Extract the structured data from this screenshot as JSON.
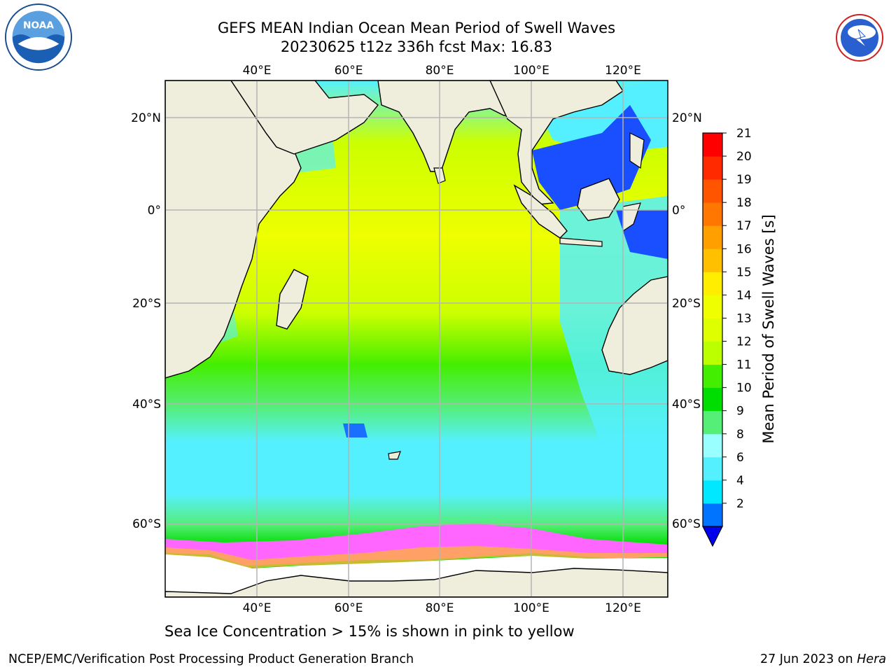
{
  "header": {
    "title_line1": "GEFS MEAN Indian Ocean Mean Period of Swell Waves",
    "title_line2": "20230625 t12z 336h fcst   Max: 16.83"
  },
  "map": {
    "lon_ticks": [
      "40°E",
      "60°E",
      "80°E",
      "100°E",
      "120°E"
    ],
    "lat_ticks_left": [
      "20°N",
      "0°",
      "20°S",
      "40°S",
      "60°S"
    ],
    "lat_ticks_right": [
      "20°N",
      "0°",
      "20°S",
      "40°S",
      "60°S"
    ],
    "land_color": "#efeddc",
    "sea_ice_color": "#ff66ff"
  },
  "colorbar": {
    "label": "Mean Period of Swell Waves [s]",
    "ticks": [
      "21",
      "20",
      "19",
      "18",
      "17",
      "16",
      "15",
      "14",
      "13",
      "12",
      "11",
      "10",
      "9",
      "8",
      "6",
      "4",
      "2"
    ],
    "colors_bottom_to_top": [
      "#0073ff",
      "#00e8ff",
      "#55f0ff",
      "#99ffff",
      "#55ee77",
      "#00dd00",
      "#44ee00",
      "#bbff00",
      "#ddff00",
      "#f0ff00",
      "#ffee00",
      "#ffc000",
      "#ffa000",
      "#ff7700",
      "#ff5500",
      "#ff2a00",
      "#ff0000"
    ],
    "under_color": "#0000ee"
  },
  "caption": "Sea Ice Concentration > 15% is shown in pink to yellow",
  "footer": {
    "left": "NCEP/EMC/Verification Post Processing Product Generation Branch",
    "right_prefix": "27 Jun 2023 on ",
    "right_host": "Hera"
  }
}
